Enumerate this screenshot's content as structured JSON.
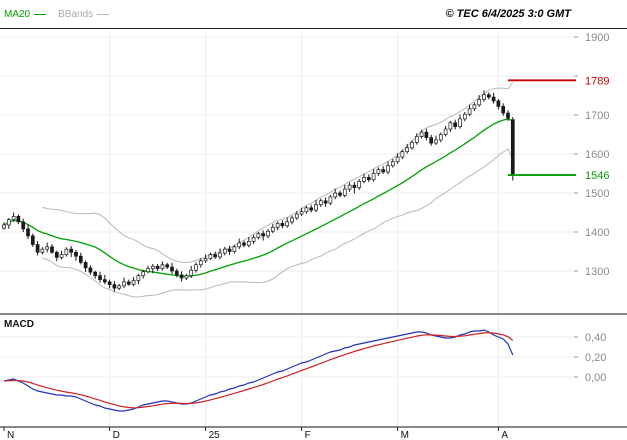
{
  "header": {
    "copyright": "© TEC 6/4/2025 3:0 GMT"
  },
  "chart_data": {
    "type": "candlestick",
    "title": "",
    "legend": [
      {
        "label": "MA20",
        "color": "#00a000"
      },
      {
        "label": "BBands",
        "color": "#b8b8b8"
      }
    ],
    "x_labels": [
      {
        "label": "N",
        "index": 0
      },
      {
        "label": "D",
        "index": 22
      },
      {
        "label": "25",
        "index": 42
      },
      {
        "label": "F",
        "index": 62
      },
      {
        "label": "M",
        "index": 82
      },
      {
        "label": "A",
        "index": 103
      }
    ],
    "price_panel": {
      "ylim": [
        1240,
        1920
      ],
      "ticks": [
        {
          "value": 1900,
          "label": "1900"
        },
        {
          "value": 1800,
          "label": ""
        },
        {
          "value": 1700,
          "label": "1700"
        },
        {
          "value": 1600,
          "label": "1600"
        },
        {
          "value": 1500,
          "label": "1500"
        },
        {
          "value": 1400,
          "label": "1400"
        },
        {
          "value": 1300,
          "label": "1300"
        }
      ],
      "levels": [
        {
          "value": 1789,
          "label": "1789",
          "color": "#cc0000"
        },
        {
          "value": 1546,
          "label": "1546",
          "color": "#00a000"
        }
      ],
      "overlays": [
        "MA20",
        "BollingerBands(20,2)"
      ],
      "candles_ohlc": [
        [
          1410,
          1425,
          1406,
          1418
        ],
        [
          1418,
          1436,
          1408,
          1432
        ],
        [
          1432,
          1450,
          1426,
          1440
        ],
        [
          1440,
          1445,
          1420,
          1426
        ],
        [
          1426,
          1434,
          1400,
          1408
        ],
        [
          1408,
          1420,
          1382,
          1390
        ],
        [
          1390,
          1396,
          1362,
          1368
        ],
        [
          1368,
          1377,
          1340,
          1348
        ],
        [
          1348,
          1361,
          1343,
          1356
        ],
        [
          1356,
          1373,
          1348,
          1362
        ],
        [
          1362,
          1369,
          1344,
          1348
        ],
        [
          1348,
          1352,
          1325,
          1335
        ],
        [
          1335,
          1352,
          1330,
          1342
        ],
        [
          1342,
          1361,
          1337,
          1356
        ],
        [
          1356,
          1364,
          1336,
          1348
        ],
        [
          1348,
          1354,
          1326,
          1338
        ],
        [
          1338,
          1347,
          1317,
          1322
        ],
        [
          1322,
          1327,
          1297,
          1308
        ],
        [
          1308,
          1315,
          1290,
          1297
        ],
        [
          1297,
          1301,
          1280,
          1288
        ],
        [
          1288,
          1298,
          1270,
          1278
        ],
        [
          1278,
          1290,
          1266,
          1272
        ],
        [
          1272,
          1278,
          1256,
          1265
        ],
        [
          1265,
          1274,
          1247,
          1256
        ],
        [
          1256,
          1267,
          1251,
          1262
        ],
        [
          1262,
          1283,
          1256,
          1272
        ],
        [
          1272,
          1278,
          1262,
          1266
        ],
        [
          1266,
          1285,
          1261,
          1276
        ],
        [
          1276,
          1293,
          1266,
          1288
        ],
        [
          1288,
          1303,
          1281,
          1298
        ],
        [
          1298,
          1314,
          1294,
          1306
        ],
        [
          1306,
          1318,
          1294,
          1312
        ],
        [
          1312,
          1318,
          1300,
          1306
        ],
        [
          1306,
          1325,
          1301,
          1316
        ],
        [
          1316,
          1321,
          1305,
          1310
        ],
        [
          1310,
          1321,
          1292,
          1300
        ],
        [
          1300,
          1306,
          1284,
          1290
        ],
        [
          1290,
          1299,
          1273,
          1282
        ],
        [
          1282,
          1293,
          1277,
          1288
        ],
        [
          1288,
          1313,
          1282,
          1302
        ],
        [
          1302,
          1322,
          1296,
          1316
        ],
        [
          1316,
          1333,
          1309,
          1326
        ],
        [
          1326,
          1342,
          1321,
          1332
        ],
        [
          1332,
          1347,
          1328,
          1342
        ],
        [
          1342,
          1350,
          1331,
          1336
        ],
        [
          1336,
          1358,
          1330,
          1346
        ],
        [
          1346,
          1362,
          1340,
          1356
        ],
        [
          1356,
          1365,
          1341,
          1350
        ],
        [
          1350,
          1367,
          1345,
          1362
        ],
        [
          1362,
          1383,
          1356,
          1372
        ],
        [
          1372,
          1378,
          1361,
          1366
        ],
        [
          1366,
          1387,
          1361,
          1376
        ],
        [
          1376,
          1393,
          1369,
          1386
        ],
        [
          1386,
          1400,
          1381,
          1396
        ],
        [
          1396,
          1404,
          1378,
          1390
        ],
        [
          1390,
          1408,
          1384,
          1402
        ],
        [
          1402,
          1421,
          1397,
          1412
        ],
        [
          1412,
          1427,
          1404,
          1422
        ],
        [
          1422,
          1430,
          1410,
          1416
        ],
        [
          1416,
          1437,
          1411,
          1426
        ],
        [
          1426,
          1442,
          1420,
          1436
        ],
        [
          1436,
          1453,
          1431,
          1446
        ],
        [
          1446,
          1462,
          1441,
          1452
        ],
        [
          1452,
          1467,
          1447,
          1462
        ],
        [
          1462,
          1470,
          1450,
          1456
        ],
        [
          1456,
          1482,
          1451,
          1470
        ],
        [
          1470,
          1486,
          1464,
          1480
        ],
        [
          1480,
          1489,
          1465,
          1474
        ],
        [
          1474,
          1495,
          1469,
          1490
        ],
        [
          1490,
          1511,
          1484,
          1500
        ],
        [
          1500,
          1506,
          1489,
          1494
        ],
        [
          1494,
          1521,
          1489,
          1510
        ],
        [
          1510,
          1527,
          1503,
          1520
        ],
        [
          1520,
          1528,
          1499,
          1514
        ],
        [
          1514,
          1536,
          1508,
          1530
        ],
        [
          1530,
          1549,
          1525,
          1540
        ],
        [
          1540,
          1548,
          1528,
          1534
        ],
        [
          1534,
          1561,
          1529,
          1550
        ],
        [
          1550,
          1566,
          1544,
          1560
        ],
        [
          1560,
          1569,
          1549,
          1554
        ],
        [
          1554,
          1581,
          1548,
          1570
        ],
        [
          1570,
          1587,
          1565,
          1580
        ],
        [
          1580,
          1602,
          1575,
          1592
        ],
        [
          1592,
          1611,
          1587,
          1606
        ],
        [
          1606,
          1626,
          1601,
          1616
        ],
        [
          1616,
          1635,
          1611,
          1630
        ],
        [
          1630,
          1653,
          1624,
          1645
        ],
        [
          1645,
          1662,
          1640,
          1656
        ],
        [
          1656,
          1665,
          1635,
          1642
        ],
        [
          1642,
          1649,
          1621,
          1628
        ],
        [
          1628,
          1647,
          1623,
          1636
        ],
        [
          1636,
          1655,
          1630,
          1650
        ],
        [
          1650,
          1672,
          1645,
          1664
        ],
        [
          1664,
          1685,
          1657,
          1680
        ],
        [
          1680,
          1688,
          1663,
          1670
        ],
        [
          1670,
          1701,
          1665,
          1690
        ],
        [
          1690,
          1708,
          1684,
          1702
        ],
        [
          1702,
          1727,
          1697,
          1716
        ],
        [
          1716,
          1732,
          1710,
          1726
        ],
        [
          1726,
          1751,
          1721,
          1740
        ],
        [
          1740,
          1763,
          1734,
          1752
        ],
        [
          1752,
          1758,
          1740,
          1746
        ],
        [
          1746,
          1757,
          1729,
          1736
        ],
        [
          1736,
          1741,
          1714,
          1722
        ],
        [
          1722,
          1730,
          1698,
          1705
        ],
        [
          1705,
          1712,
          1685,
          1692
        ],
        [
          1688,
          1695,
          1532,
          1546
        ]
      ]
    },
    "macd_panel": {
      "label": "MACD",
      "ylim": [
        -0.5,
        0.63
      ],
      "ticks": [
        {
          "value": 0.4,
          "label": "0,40"
        },
        {
          "value": 0.2,
          "label": "0,20"
        },
        {
          "value": 0.0,
          "label": "0,00"
        }
      ],
      "series": [
        {
          "name": "MACD",
          "color": "#2233bb",
          "values": [
            -0.04,
            -0.03,
            -0.02,
            -0.04,
            -0.06,
            -0.09,
            -0.12,
            -0.14,
            -0.15,
            -0.16,
            -0.17,
            -0.18,
            -0.18,
            -0.19,
            -0.19,
            -0.2,
            -0.22,
            -0.24,
            -0.26,
            -0.28,
            -0.29,
            -0.31,
            -0.32,
            -0.33,
            -0.34,
            -0.34,
            -0.33,
            -0.32,
            -0.3,
            -0.28,
            -0.27,
            -0.26,
            -0.25,
            -0.24,
            -0.24,
            -0.25,
            -0.26,
            -0.27,
            -0.27,
            -0.26,
            -0.24,
            -0.22,
            -0.2,
            -0.18,
            -0.17,
            -0.15,
            -0.14,
            -0.12,
            -0.11,
            -0.09,
            -0.08,
            -0.06,
            -0.05,
            -0.03,
            -0.01,
            0.01,
            0.03,
            0.05,
            0.06,
            0.08,
            0.1,
            0.12,
            0.14,
            0.15,
            0.17,
            0.19,
            0.21,
            0.23,
            0.25,
            0.26,
            0.27,
            0.29,
            0.3,
            0.32,
            0.33,
            0.34,
            0.35,
            0.36,
            0.37,
            0.38,
            0.39,
            0.4,
            0.41,
            0.42,
            0.43,
            0.44,
            0.45,
            0.45,
            0.44,
            0.42,
            0.41,
            0.4,
            0.39,
            0.39,
            0.4,
            0.42,
            0.43,
            0.45,
            0.46,
            0.46,
            0.47,
            0.45,
            0.42,
            0.4,
            0.38,
            0.33,
            0.22
          ]
        },
        {
          "name": "Signal",
          "color": "#cc2222",
          "derived": "EMA9 of MACD"
        }
      ]
    }
  }
}
